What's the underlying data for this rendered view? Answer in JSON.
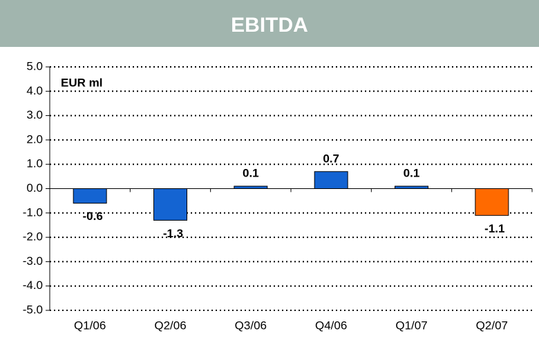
{
  "chart_data": {
    "type": "bar",
    "title": "EBITDA",
    "unit_label": "EUR ml",
    "categories": [
      "Q1/06",
      "Q2/06",
      "Q3/06",
      "Q4/06",
      "Q1/07",
      "Q2/07"
    ],
    "values": [
      -0.6,
      -1.3,
      0.1,
      0.7,
      0.1,
      -1.1
    ],
    "colors": [
      "#1464d2",
      "#1464d2",
      "#1464d2",
      "#1464d2",
      "#1464d2",
      "#ff6a00"
    ],
    "ylim": [
      -5,
      5
    ],
    "yticks": [
      {
        "value": -5,
        "label": "-5.0"
      },
      {
        "value": -4,
        "label": "-4.0"
      },
      {
        "value": -3,
        "label": "-3.0"
      },
      {
        "value": -2,
        "label": "-2.0"
      },
      {
        "value": -1,
        "label": "-1.0"
      },
      {
        "value": 0,
        "label": "0.0"
      },
      {
        "value": 1,
        "label": "1.0"
      },
      {
        "value": 2,
        "label": "2.0"
      },
      {
        "value": 3,
        "label": "3.0"
      },
      {
        "value": 4,
        "label": "4.0"
      },
      {
        "value": 5,
        "label": "5.0"
      }
    ],
    "grid": true
  }
}
